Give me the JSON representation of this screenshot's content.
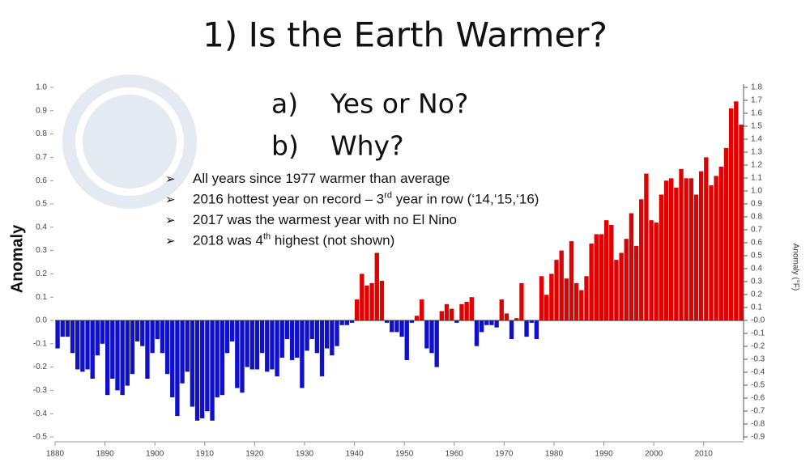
{
  "slide": {
    "title": "1) Is the Earth Warmer?",
    "questions": [
      {
        "marker": "a)",
        "text": "Yes or No?"
      },
      {
        "marker": "b)",
        "text": "Why?"
      }
    ],
    "bullets": [
      {
        "before": "All years since 1977 warmer than average"
      },
      {
        "before": "2016 hottest year on record – 3",
        "sup": "rd",
        "after": " year in row (‘14,‘15,‘16)"
      },
      {
        "before": "2017 was the warmest year with no El Nino"
      },
      {
        "before": "2018 was 4",
        "sup": "th",
        "after": " highest (not shown)"
      }
    ]
  },
  "chart_data": {
    "type": "bar",
    "ylabel": "Anomaly",
    "y2label": "Anomaly (°F)",
    "color_positive": "#e00000",
    "color_negative": "#1010c8",
    "x": [
      1880,
      1881,
      1882,
      1883,
      1884,
      1885,
      1886,
      1887,
      1888,
      1889,
      1890,
      1891,
      1892,
      1893,
      1894,
      1895,
      1896,
      1897,
      1898,
      1899,
      1900,
      1901,
      1902,
      1903,
      1904,
      1905,
      1906,
      1907,
      1908,
      1909,
      1910,
      1911,
      1912,
      1913,
      1914,
      1915,
      1916,
      1917,
      1918,
      1919,
      1920,
      1921,
      1922,
      1923,
      1924,
      1925,
      1926,
      1927,
      1928,
      1929,
      1930,
      1931,
      1932,
      1933,
      1934,
      1935,
      1936,
      1937,
      1938,
      1939,
      1940,
      1941,
      1942,
      1943,
      1944,
      1945,
      1946,
      1947,
      1948,
      1949,
      1950,
      1951,
      1952,
      1953,
      1954,
      1955,
      1956,
      1957,
      1958,
      1959,
      1960,
      1961,
      1962,
      1963,
      1964,
      1965,
      1966,
      1967,
      1968,
      1969,
      1970,
      1971,
      1972,
      1973,
      1974,
      1975,
      1976,
      1977,
      1978,
      1979,
      1980,
      1981,
      1982,
      1983,
      1984,
      1985,
      1986,
      1987,
      1988,
      1989,
      1990,
      1991,
      1992,
      1993,
      1994,
      1995,
      1996,
      1997,
      1998,
      1999,
      2000,
      2001,
      2002,
      2003,
      2004,
      2005,
      2006,
      2007,
      2008,
      2009,
      2010,
      2011,
      2012,
      2013,
      2014,
      2015,
      2016,
      2017
    ],
    "values": [
      -0.12,
      -0.07,
      -0.07,
      -0.14,
      -0.21,
      -0.22,
      -0.21,
      -0.25,
      -0.15,
      -0.1,
      -0.32,
      -0.25,
      -0.3,
      -0.32,
      -0.28,
      -0.23,
      -0.09,
      -0.11,
      -0.25,
      -0.14,
      -0.08,
      -0.14,
      -0.23,
      -0.33,
      -0.41,
      -0.27,
      -0.22,
      -0.37,
      -0.43,
      -0.42,
      -0.39,
      -0.43,
      -0.33,
      -0.32,
      -0.14,
      -0.09,
      -0.29,
      -0.31,
      -0.2,
      -0.21,
      -0.21,
      -0.14,
      -0.22,
      -0.21,
      -0.24,
      -0.16,
      -0.08,
      -0.17,
      -0.16,
      -0.29,
      -0.13,
      -0.08,
      -0.14,
      -0.24,
      -0.12,
      -0.15,
      -0.11,
      -0.02,
      -0.02,
      -0.01,
      0.09,
      0.2,
      0.15,
      0.16,
      0.29,
      0.17,
      -0.01,
      -0.05,
      -0.05,
      -0.07,
      -0.17,
      -0.01,
      0.02,
      0.09,
      -0.12,
      -0.14,
      -0.2,
      0.04,
      0.07,
      0.05,
      -0.01,
      0.07,
      0.08,
      0.1,
      -0.11,
      -0.05,
      -0.02,
      -0.02,
      -0.03,
      0.09,
      0.03,
      -0.08,
      0.01,
      0.16,
      -0.07,
      -0.01,
      -0.08,
      0.19,
      0.11,
      0.2,
      0.26,
      0.3,
      0.18,
      0.34,
      0.16,
      0.13,
      0.19,
      0.33,
      0.37,
      0.37,
      0.43,
      0.41,
      0.26,
      0.29,
      0.35,
      0.46,
      0.32,
      0.52,
      0.63,
      0.43,
      0.42,
      0.54,
      0.6,
      0.61,
      0.57,
      0.65,
      0.61,
      0.61,
      0.54,
      0.64,
      0.7,
      0.58,
      0.62,
      0.66,
      0.74,
      0.91,
      0.94,
      0.84
    ],
    "xlim": [
      1879.5,
      2017.5
    ],
    "xticks": [
      1880,
      1890,
      1900,
      1910,
      1920,
      1930,
      1940,
      1950,
      1960,
      1970,
      1980,
      1990,
      2000,
      2010
    ],
    "ylim": [
      -0.5,
      1.0
    ],
    "yticks": [
      {
        "value": 1.0,
        "label": "1.0"
      },
      0.9,
      0.8,
      0.7,
      0.6,
      0.5,
      0.4,
      0.3,
      0.2,
      0.1,
      {
        "value": 0,
        "label": "0.0"
      },
      -0.1,
      -0.2,
      -0.3,
      -0.4,
      -0.5
    ],
    "y2lim": [
      -0.9,
      1.8
    ],
    "y2ticks": [
      1.8,
      1.7,
      1.6,
      1.5,
      1.4,
      1.3,
      1.2,
      1.1,
      {
        "value": 1.0,
        "label": "1.0"
      },
      0.9,
      0.8,
      0.7,
      0.6,
      0.5,
      0.4,
      0.3,
      0.2,
      0.1,
      {
        "value": 0,
        "label": "-0.0"
      },
      -0.1,
      -0.2,
      -0.3,
      -0.4,
      -0.5,
      -0.6,
      -0.7,
      -0.8,
      -0.9
    ]
  }
}
